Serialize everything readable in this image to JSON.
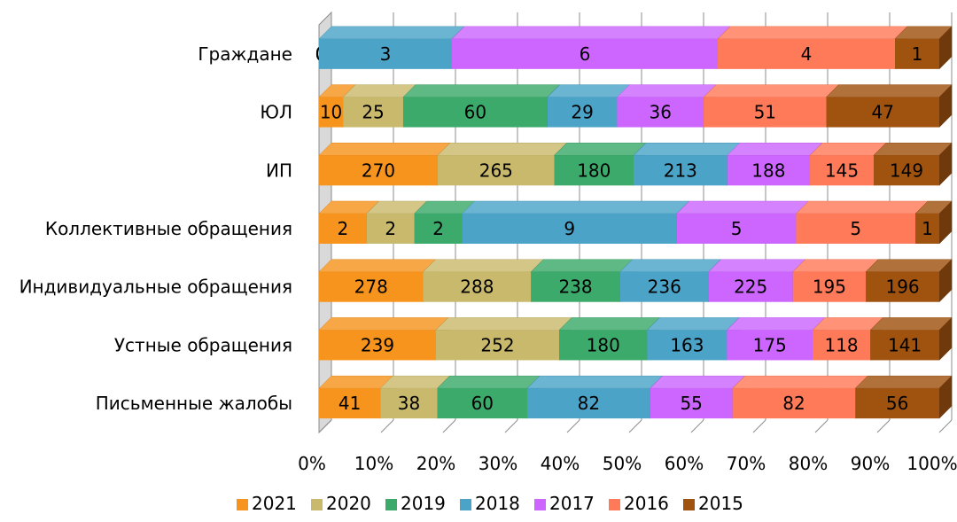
{
  "chart_data": {
    "type": "bar",
    "orientation": "horizontal",
    "stacked": "percent",
    "style": "3d",
    "categories": [
      "Граждане",
      "ЮЛ",
      "ИП",
      "Коллективные обращения",
      "Индивидуальные обращения",
      "Устные обращения",
      "Письменные жалобы"
    ],
    "series": [
      {
        "name": "2021",
        "color": "#F7941D",
        "values": [
          0,
          10,
          270,
          2,
          278,
          239,
          41
        ]
      },
      {
        "name": "2020",
        "color": "#C9B96C",
        "values": [
          0,
          25,
          265,
          2,
          288,
          252,
          38
        ]
      },
      {
        "name": "2019",
        "color": "#3CAA6A",
        "values": [
          0,
          60,
          180,
          2,
          238,
          180,
          60
        ]
      },
      {
        "name": "2018",
        "color": "#4BA3C8",
        "values": [
          3,
          29,
          213,
          9,
          236,
          163,
          82
        ]
      },
      {
        "name": "2017",
        "color": "#CC66FF",
        "values": [
          6,
          36,
          188,
          5,
          225,
          175,
          55
        ]
      },
      {
        "name": "2016",
        "color": "#FF7A59",
        "values": [
          4,
          51,
          145,
          5,
          195,
          118,
          82
        ]
      },
      {
        "name": "2015",
        "color": "#A0520F",
        "values": [
          1,
          47,
          149,
          1,
          196,
          141,
          56
        ]
      }
    ],
    "x_ticks": [
      "0%",
      "10%",
      "20%",
      "30%",
      "40%",
      "50%",
      "60%",
      "70%",
      "80%",
      "90%",
      "100%"
    ],
    "xlim": [
      0,
      100
    ],
    "grid": true,
    "legend_position": "bottom",
    "title": ""
  }
}
